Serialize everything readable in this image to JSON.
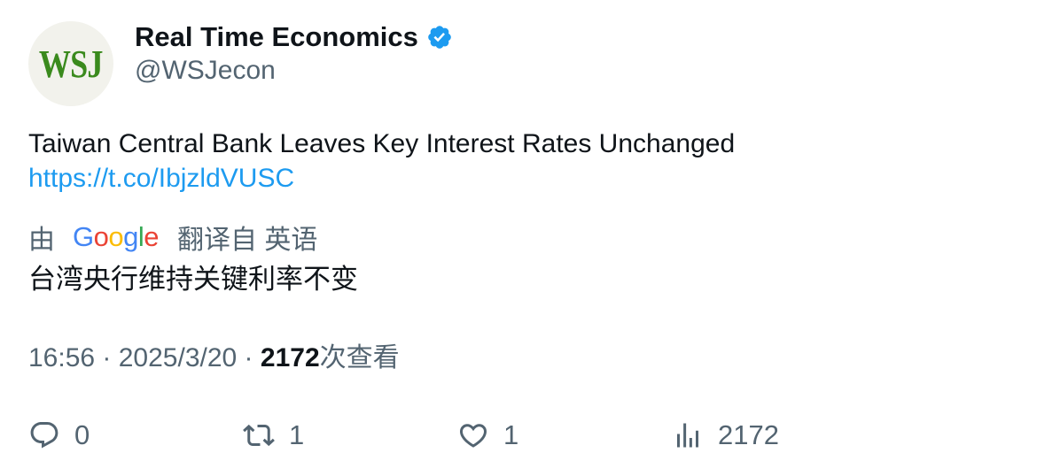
{
  "profile": {
    "avatar_text": "WSJ",
    "display_name": "Real Time Economics",
    "handle": "@WSJecon",
    "verified_icon": "verified-badge-icon"
  },
  "tweet": {
    "text": "Taiwan Central Bank Leaves Key Interest Rates Unchanged",
    "link": "https://t.co/IbjzldVUSC"
  },
  "translation": {
    "by_label": "由",
    "provider": "Google",
    "from_label": "翻译自 英语",
    "text": "台湾央行维持关键利率不变"
  },
  "meta": {
    "time": "16:56",
    "date": "2025/3/20",
    "separator": " · ",
    "views_count": "2172",
    "views_label": "次查看"
  },
  "actions": {
    "reply_count": "0",
    "retweet_count": "1",
    "like_count": "1",
    "views_count": "2172"
  },
  "colors": {
    "text_primary": "#0f1419",
    "text_secondary": "#536471",
    "link": "#1d9bf0",
    "verified": "#1d9bf0",
    "wsj_green": "#3a8a1d"
  }
}
